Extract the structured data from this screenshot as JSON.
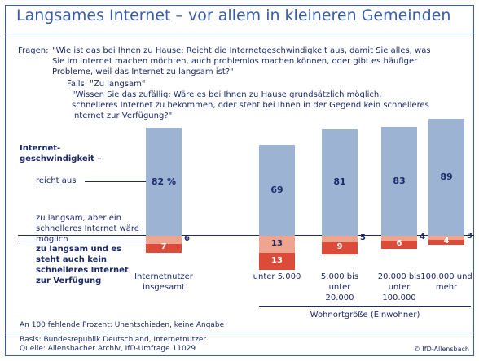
{
  "title": "Langsames Internet – vor allem in kleineren Gemeinden",
  "questions": {
    "intro": "Fragen:",
    "q1": "\"Wie ist das bei Ihnen zu Hause: Reicht die Internetgeschwindigkeit aus, damit Sie alles, was Sie im Internet machen möchten, auch problemlos machen können, oder gibt es häufiger Probleme, weil das Internet zu langsam ist?\"",
    "condition": "Falls: \"Zu langsam\"",
    "q2": "\"Wissen Sie das zufällig: Wäre es bei Ihnen zu Hause grundsätzlich möglich, schnelleres Internet zu bekommen, oder steht bei Ihnen in der Gegend kein schnelleres Internet zur Verfügung?\""
  },
  "chart_data": {
    "type": "bar",
    "stacking": "split-baseline",
    "legend_title": "Internet-geschwindigkeit –",
    "categories": [
      "Internetnutzer insgesamt",
      "unter 5.000",
      "5.000 bis unter 20.000",
      "20.000 bis unter 100.000",
      "100.000 und mehr"
    ],
    "group_label": "Wohnortgröße (Einwohner)",
    "series": [
      {
        "name": "reicht aus",
        "color": "#9db3d4",
        "values": [
          82,
          69,
          81,
          83,
          89
        ],
        "value_labels": [
          "82 %",
          "69",
          "81",
          "83",
          "89"
        ]
      },
      {
        "name": "zu langsam, aber ein schnelleres Internet wäre möglich",
        "color": "#eda58f",
        "values": [
          6,
          13,
          5,
          4,
          3
        ]
      },
      {
        "name": "zu langsam und es steht auch kein schnelleres Internet zur Verfügung",
        "color": "#dc4b3a",
        "values": [
          7,
          13,
          9,
          6,
          4
        ]
      }
    ]
  },
  "footnote": "An 100 fehlende Prozent: Unentschieden, keine Angabe",
  "basis": "Basis: Bundesrepublik Deutschland, Internetnutzer",
  "source": "Quelle: Allensbacher Archiv, IfD-Umfrage 11029",
  "copyright": "© IfD-Allensbach"
}
